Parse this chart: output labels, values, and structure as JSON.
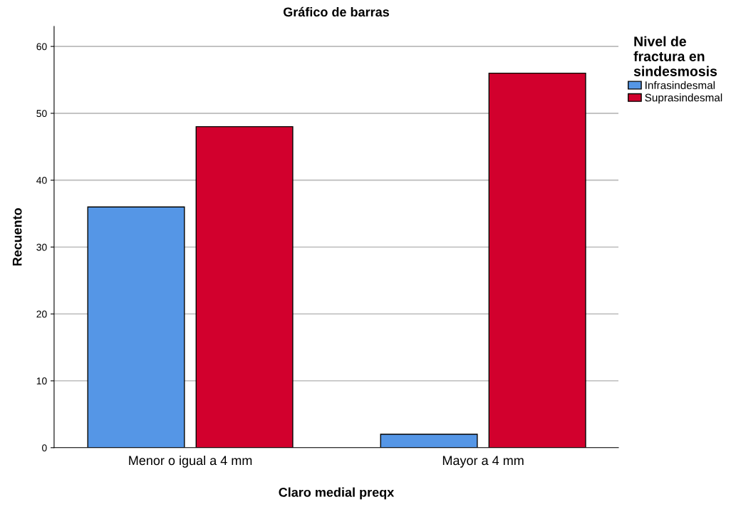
{
  "chart_data": {
    "type": "bar",
    "title": "Gráfico de barras",
    "xlabel": "Claro medial preqx",
    "ylabel": "Recuento",
    "legend_title": "Nivel de\nfractura en\nsindesmosis",
    "categories": [
      "Menor o igual a 4 mm",
      "Mayor a 4 mm"
    ],
    "series": [
      {
        "name": "Infrasindesmal",
        "color": "#5596e6",
        "values": [
          36,
          2
        ]
      },
      {
        "name": "Suprasindesmal",
        "color": "#d2002d",
        "values": [
          48,
          56
        ]
      }
    ],
    "ylim": [
      0,
      63
    ],
    "yticks": [
      0,
      10,
      20,
      30,
      40,
      50,
      60
    ],
    "grid": "y",
    "legend": "top right"
  }
}
